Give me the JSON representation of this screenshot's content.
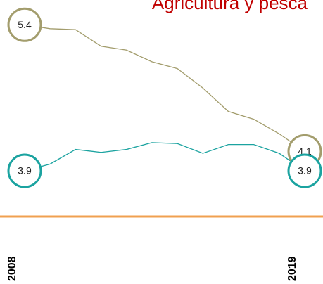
{
  "chart_data": {
    "type": "line",
    "title": "Agricultura y pesca",
    "categories": [
      "2008",
      null,
      null,
      null,
      null,
      null,
      null,
      null,
      null,
      null,
      null,
      "2019"
    ],
    "series": [
      {
        "color": "#a39d6d",
        "values": [
          5.4,
          5.36,
          5.35,
          5.18,
          5.14,
          5.02,
          4.95,
          4.75,
          4.51,
          4.43,
          4.28,
          4.1
        ]
      },
      {
        "color": "#1ba3a0",
        "values": [
          3.9,
          3.97,
          4.12,
          4.09,
          4.12,
          4.19,
          4.18,
          4.08,
          4.17,
          4.17,
          4.08,
          3.9
        ]
      }
    ],
    "ylim": [
      3.0,
      5.7
    ],
    "axis_color": "#f0a050",
    "title_color": "#c00000"
  }
}
